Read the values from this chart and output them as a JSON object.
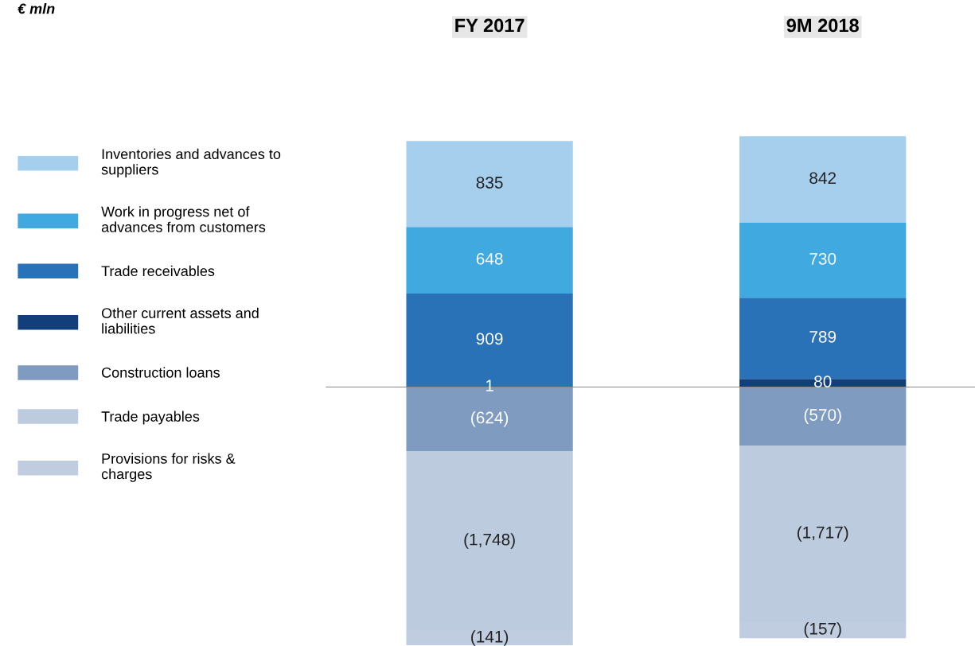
{
  "chart_data": {
    "type": "bar",
    "stacked": true,
    "categories": [
      "FY 2017",
      "9M 2018"
    ],
    "ylim": [
      -2520,
      2450
    ],
    "tick_labels": "x",
    "legend": "left",
    "annotations": [
      "€ mln"
    ],
    "series": [
      {
        "name": "Other current assets and\nliabilities",
        "color": "#123f7a",
        "values": [
          1,
          80
        ],
        "value_labels": [
          "1",
          "80"
        ]
      },
      {
        "name": "Trade receivables",
        "color": "#2a72b8",
        "values": [
          909,
          789
        ],
        "value_labels": [
          "909",
          "789"
        ]
      },
      {
        "name": "Work in progress net of\nadvances from customers",
        "color": "#3fa9e0",
        "values": [
          648,
          730
        ],
        "value_labels": [
          "648",
          "730"
        ]
      },
      {
        "name": "Inventories and advances to\nsuppliers",
        "color": "#a6cfee",
        "values": [
          835,
          842
        ],
        "value_labels": [
          "835",
          "842"
        ]
      },
      {
        "name": "Construction loans",
        "color": "#7f9bbf",
        "values": [
          -624,
          -570
        ],
        "value_labels": [
          "(624)",
          "(570)"
        ]
      },
      {
        "name": "Trade payables",
        "color": "#bccbdd",
        "values": [
          -1748,
          -1717
        ],
        "value_labels": [
          "(1,748)",
          "(1,717)"
        ]
      },
      {
        "name": "Provisions for risks &\ncharges",
        "color": "#c0cde0",
        "values": [
          -141,
          -157
        ],
        "value_labels": [
          "(141)",
          "(157)"
        ]
      }
    ]
  }
}
